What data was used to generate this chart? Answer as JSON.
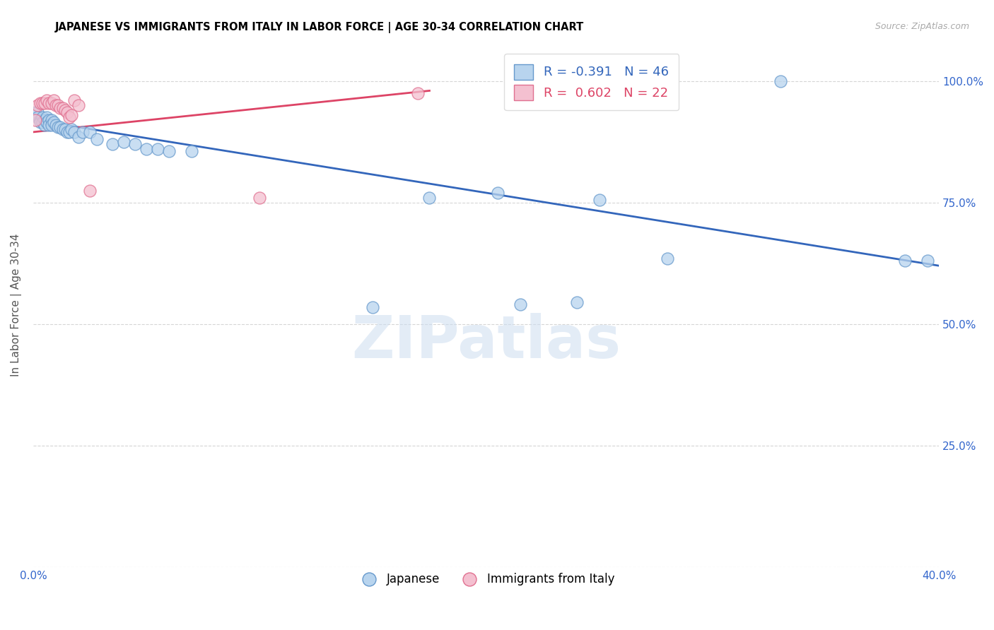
{
  "title": "JAPANESE VS IMMIGRANTS FROM ITALY IN LABOR FORCE | AGE 30-34 CORRELATION CHART",
  "source": "Source: ZipAtlas.com",
  "ylabel": "In Labor Force | Age 30-34",
  "x_min": 0.0,
  "x_max": 0.4,
  "y_min": 0.0,
  "y_max": 1.08,
  "japanese_color": "#b8d4ee",
  "japanese_edge_color": "#6699cc",
  "italy_color": "#f4c0d0",
  "italy_edge_color": "#e07090",
  "blue_line_color": "#3366bb",
  "pink_line_color": "#dd4466",
  "legend_R1": "-0.391",
  "legend_N1": "46",
  "legend_R2": "0.602",
  "legend_N2": "22",
  "japanese_x": [
    0.001,
    0.002,
    0.002,
    0.003,
    0.003,
    0.004,
    0.004,
    0.005,
    0.005,
    0.006,
    0.006,
    0.007,
    0.007,
    0.008,
    0.008,
    0.009,
    0.01,
    0.011,
    0.012,
    0.013,
    0.014,
    0.015,
    0.016,
    0.017,
    0.018,
    0.02,
    0.022,
    0.025,
    0.028,
    0.035,
    0.04,
    0.045,
    0.05,
    0.055,
    0.06,
    0.07,
    0.15,
    0.175,
    0.205,
    0.215,
    0.24,
    0.25,
    0.28,
    0.33,
    0.385,
    0.395
  ],
  "japanese_y": [
    0.935,
    0.935,
    0.925,
    0.92,
    0.915,
    0.925,
    0.915,
    0.92,
    0.91,
    0.925,
    0.915,
    0.92,
    0.91,
    0.92,
    0.91,
    0.915,
    0.91,
    0.905,
    0.905,
    0.9,
    0.9,
    0.895,
    0.895,
    0.9,
    0.895,
    0.885,
    0.895,
    0.895,
    0.88,
    0.87,
    0.875,
    0.87,
    0.86,
    0.86,
    0.855,
    0.855,
    0.535,
    0.76,
    0.77,
    0.54,
    0.545,
    0.755,
    0.635,
    1.0,
    0.63,
    0.63
  ],
  "italy_x": [
    0.001,
    0.002,
    0.003,
    0.004,
    0.005,
    0.006,
    0.007,
    0.008,
    0.009,
    0.01,
    0.011,
    0.012,
    0.013,
    0.014,
    0.015,
    0.016,
    0.017,
    0.018,
    0.02,
    0.025,
    0.1,
    0.17
  ],
  "italy_y": [
    0.92,
    0.95,
    0.955,
    0.955,
    0.955,
    0.96,
    0.955,
    0.955,
    0.96,
    0.95,
    0.95,
    0.945,
    0.945,
    0.94,
    0.935,
    0.925,
    0.93,
    0.96,
    0.95,
    0.775,
    0.76,
    0.975
  ],
  "blue_line_x": [
    0.0,
    0.4
  ],
  "blue_line_y": [
    0.92,
    0.62
  ],
  "pink_line_x": [
    0.0,
    0.175
  ],
  "pink_line_y": [
    0.895,
    0.98
  ]
}
